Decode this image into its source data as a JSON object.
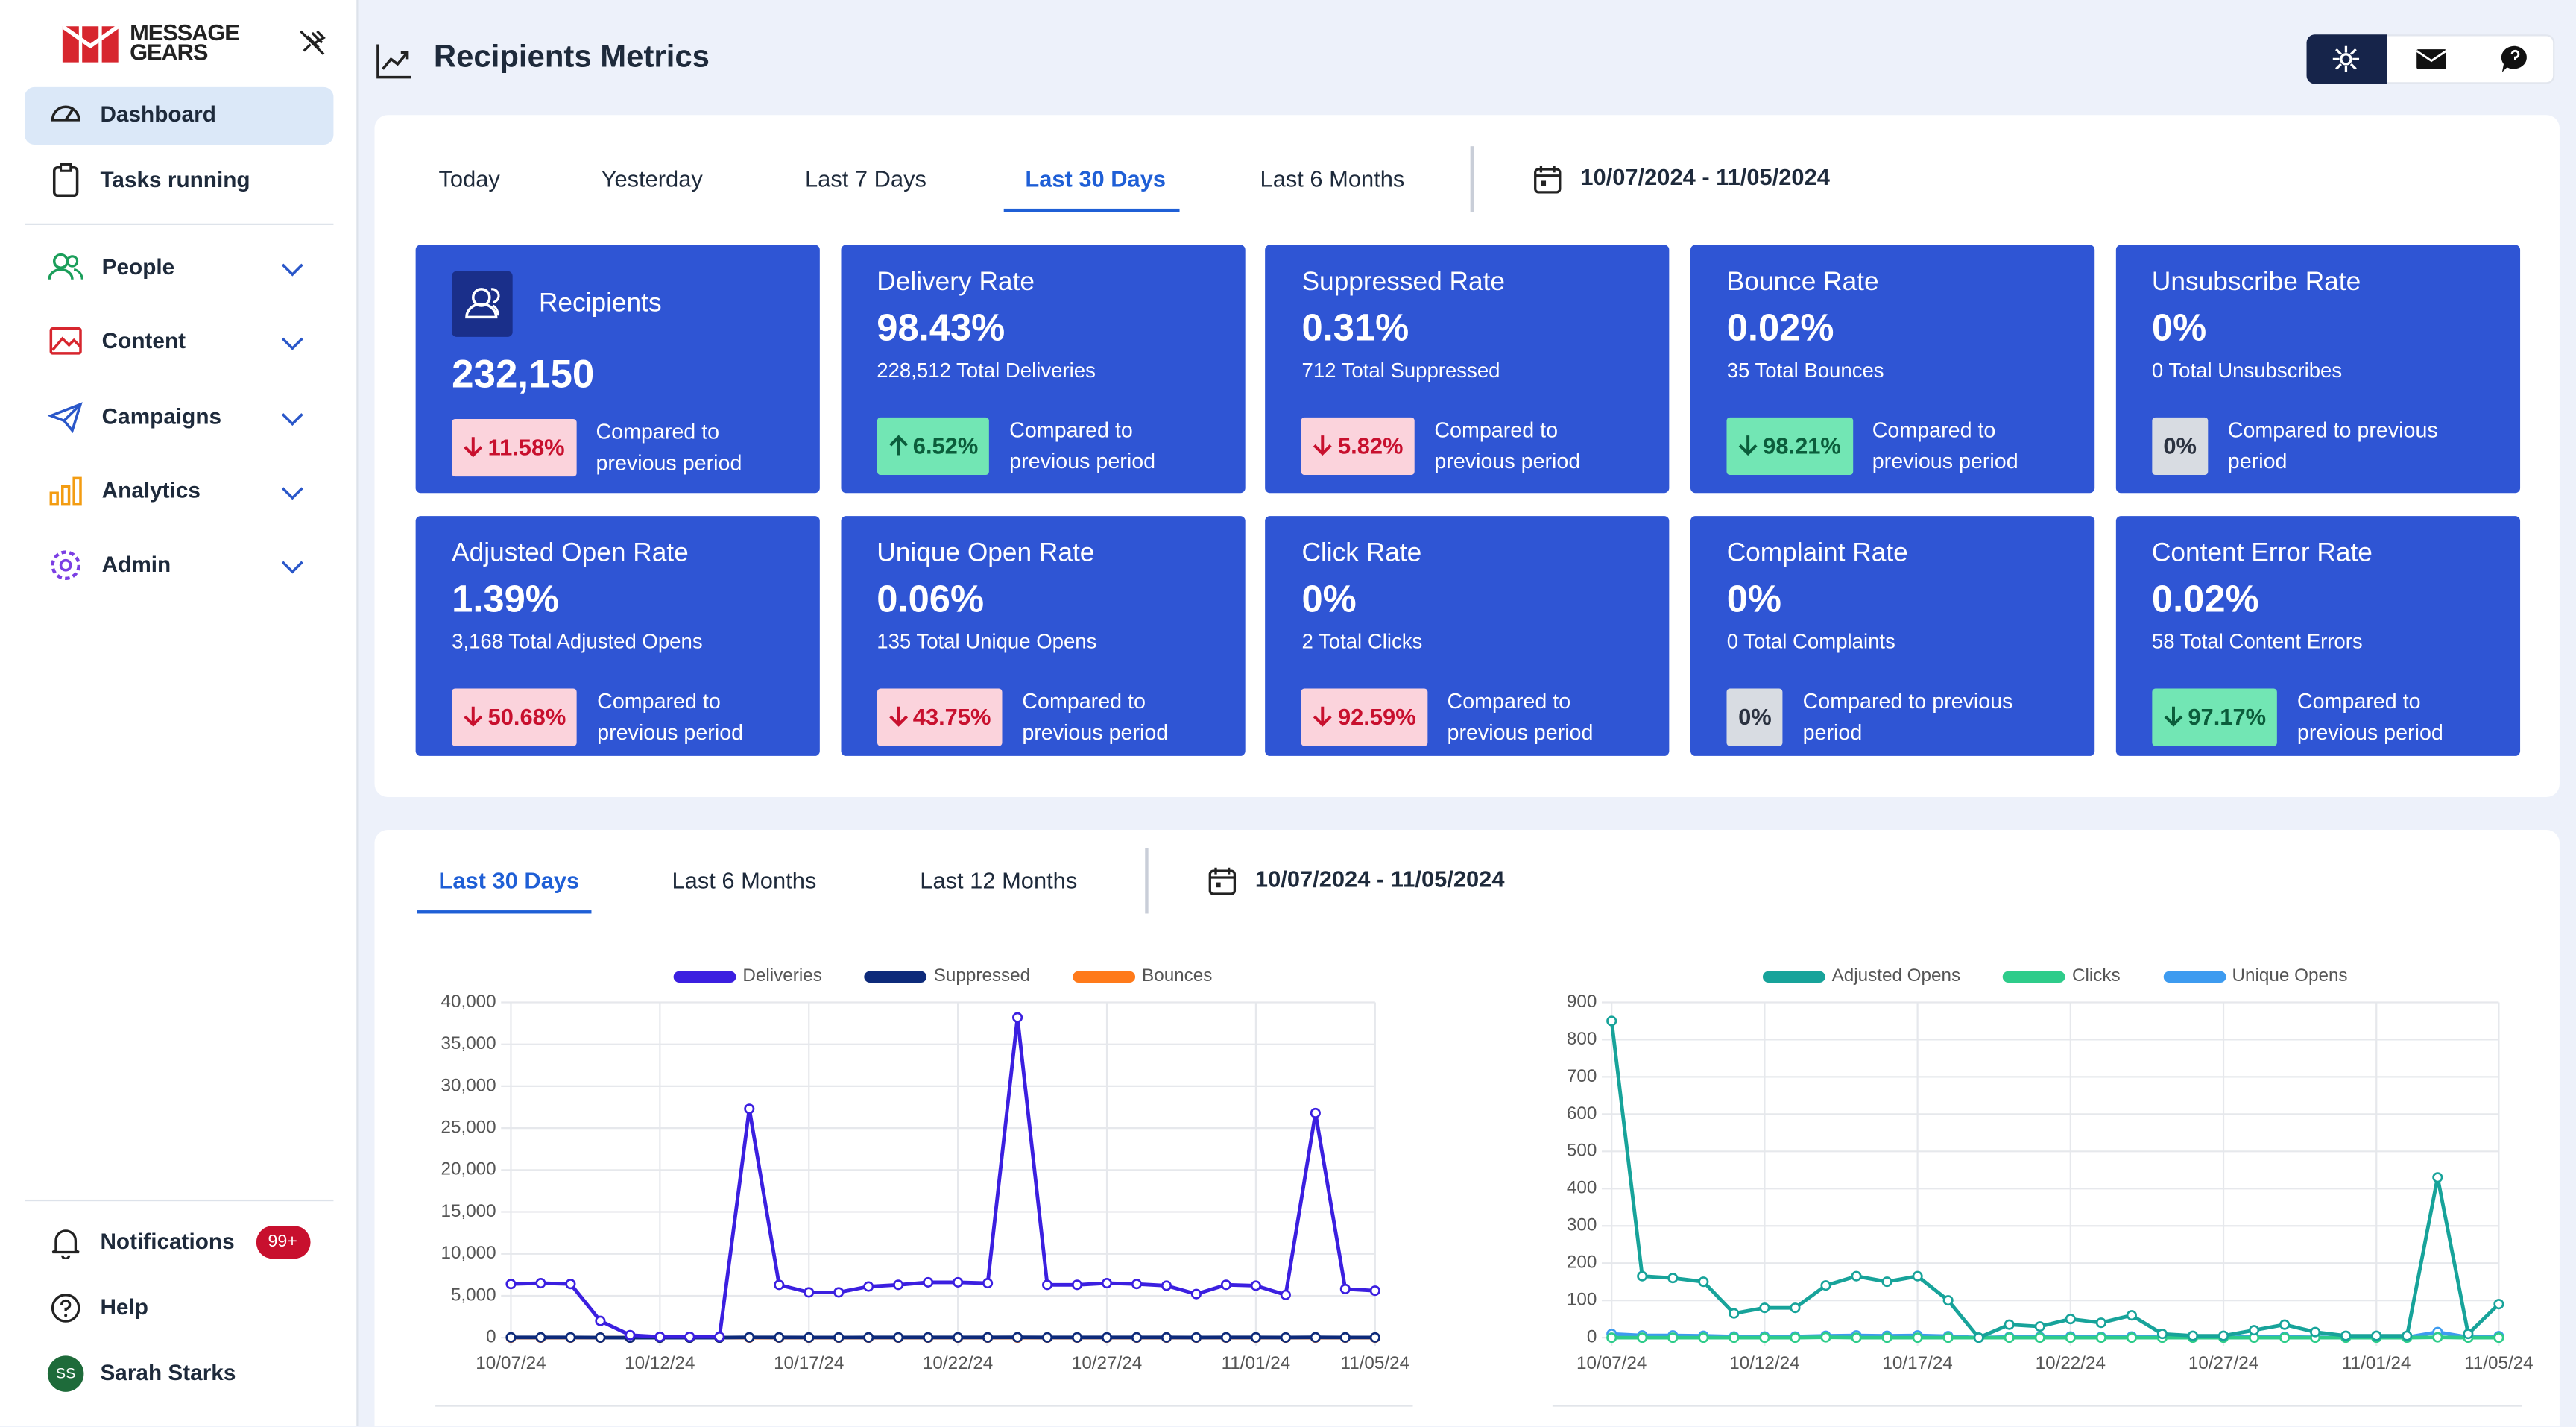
{
  "sidebar": {
    "logo": [
      "MESSAGE",
      "GEARS"
    ],
    "nav": [
      {
        "label": "Dashboard",
        "active": true
      },
      {
        "label": "Tasks running"
      },
      {
        "label": "People",
        "expandable": true
      },
      {
        "label": "Content",
        "expandable": true
      },
      {
        "label": "Campaigns",
        "expandable": true
      },
      {
        "label": "Analytics",
        "expandable": true
      },
      {
        "label": "Admin",
        "expandable": true
      }
    ],
    "footer": [
      {
        "label": "Notifications",
        "badge": "99+"
      },
      {
        "label": "Help"
      },
      {
        "label": "Sarah Starks",
        "avatar": "SS"
      }
    ]
  },
  "header": {
    "title": "Recipients Metrics"
  },
  "metrics": {
    "tabs": [
      "Today",
      "Yesterday",
      "Last 7 Days",
      "Last 30 Days",
      "Last 6 Months"
    ],
    "active_tab": "Last 30 Days",
    "date_range": "10/07/2024 - 11/05/2024",
    "cards": [
      {
        "title": "Recipients",
        "value": "232,150",
        "change": "11.58%",
        "arrow": "down",
        "tone": "bad",
        "comparison": "Compared to previous period"
      },
      {
        "title": "Delivery Rate",
        "value": "98.43%",
        "subtitle": "228,512 Total Deliveries",
        "change": "6.52%",
        "arrow": "up",
        "tone": "good",
        "comparison": "Compared to previous period"
      },
      {
        "title": "Suppressed Rate",
        "value": "0.31%",
        "subtitle": "712 Total Suppressed",
        "change": "5.82%",
        "arrow": "down",
        "tone": "bad",
        "comparison": "Compared to previous period"
      },
      {
        "title": "Bounce Rate",
        "value": "0.02%",
        "subtitle": "35 Total Bounces",
        "change": "98.21%",
        "arrow": "down",
        "tone": "good",
        "comparison": "Compared to previous period"
      },
      {
        "title": "Unsubscribe Rate",
        "value": "0%",
        "subtitle": "0 Total Unsubscribes",
        "change": "0%",
        "tone": "neutral",
        "comparison": "Compared to previous period"
      },
      {
        "title": "Adjusted Open Rate",
        "value": "1.39%",
        "subtitle": "3,168 Total Adjusted Opens",
        "change": "50.68%",
        "arrow": "down",
        "tone": "bad",
        "comparison": "Compared to previous period"
      },
      {
        "title": "Unique Open Rate",
        "value": "0.06%",
        "subtitle": "135 Total Unique Opens",
        "change": "43.75%",
        "arrow": "down",
        "tone": "bad",
        "comparison": "Compared to previous period"
      },
      {
        "title": "Click Rate",
        "value": "0%",
        "subtitle": "2 Total Clicks",
        "change": "92.59%",
        "arrow": "down",
        "tone": "bad",
        "comparison": "Compared to previous period"
      },
      {
        "title": "Complaint Rate",
        "value": "0%",
        "subtitle": "0 Total Complaints",
        "change": "0%",
        "tone": "neutral",
        "comparison": "Compared to previous period"
      },
      {
        "title": "Content Error Rate",
        "value": "0.02%",
        "subtitle": "58 Total Content Errors",
        "change": "97.17%",
        "arrow": "down",
        "tone": "good",
        "comparison": "Compared to previous period"
      }
    ]
  },
  "trends": {
    "tabs": [
      "Last 30 Days",
      "Last 6 Months",
      "Last 12 Months"
    ],
    "active_tab": "Last 30 Days",
    "date_range": "10/07/2024 - 11/05/2024"
  },
  "charts": [
    {
      "type": "line",
      "categories": [
        "10/07/24",
        null,
        null,
        null,
        null,
        "10/12/24",
        null,
        null,
        null,
        null,
        "10/17/24",
        null,
        null,
        null,
        null,
        "10/22/24",
        null,
        null,
        null,
        null,
        "10/27/24",
        null,
        null,
        null,
        null,
        "11/01/24",
        null,
        null,
        null,
        "11/05/24"
      ],
      "ylim": [
        0,
        40000
      ],
      "yticks": [
        0,
        {
          "value": 5000,
          "label": "5,000"
        },
        {
          "value": 10000,
          "label": "10,000"
        },
        {
          "value": 15000,
          "label": "15,000"
        },
        {
          "value": 20000,
          "label": "20,000"
        },
        {
          "value": 25000,
          "label": "25,000"
        },
        {
          "value": 30000,
          "label": "30,000"
        },
        {
          "value": 35000,
          "label": "35,000"
        },
        {
          "value": 40000,
          "label": "40,000"
        }
      ],
      "grid": true,
      "series": [
        {
          "name": "Deliveries",
          "color": "#3b1fe0",
          "values": [
            6400,
            6500,
            6400,
            2000,
            300,
            100,
            100,
            100,
            27300,
            6300,
            5400,
            5400,
            6100,
            6300,
            6600,
            6600,
            6500,
            38200,
            6300,
            6300,
            6500,
            6400,
            6200,
            5200,
            6300,
            6200,
            5100,
            26800,
            5800,
            5600
          ]
        },
        {
          "name": "Suppressed",
          "color": "#0d2a7a",
          "values": [
            30,
            28,
            26,
            10,
            2,
            1,
            1,
            1,
            35,
            25,
            22,
            22,
            24,
            25,
            26,
            26,
            25,
            40,
            25,
            25,
            26,
            25,
            24,
            20,
            25,
            24,
            20,
            35,
            23,
            22
          ]
        },
        {
          "name": "Bounces",
          "color": "#ff7a1a",
          "values": [
            2,
            2,
            1,
            1,
            0,
            0,
            0,
            0,
            3,
            1,
            1,
            1,
            1,
            1,
            1,
            1,
            1,
            4,
            1,
            1,
            1,
            1,
            1,
            1,
            1,
            1,
            1,
            3,
            1,
            1
          ]
        }
      ]
    },
    {
      "type": "line",
      "categories": [
        "10/07/24",
        null,
        null,
        null,
        null,
        "10/12/24",
        null,
        null,
        null,
        null,
        "10/17/24",
        null,
        null,
        null,
        null,
        "10/22/24",
        null,
        null,
        null,
        null,
        "10/27/24",
        null,
        null,
        null,
        null,
        "11/01/24",
        null,
        null,
        null,
        "11/05/24"
      ],
      "ylim": [
        0,
        900
      ],
      "yticks": [
        0,
        100,
        200,
        300,
        400,
        500,
        600,
        700,
        800,
        900
      ],
      "grid": true,
      "series": [
        {
          "name": "Adjusted Opens",
          "color": "#17a39a",
          "values": [
            850,
            165,
            160,
            150,
            65,
            80,
            80,
            140,
            165,
            150,
            165,
            100,
            0,
            35,
            30,
            50,
            40,
            60,
            10,
            5,
            5,
            20,
            35,
            15,
            5,
            5,
            5,
            430,
            10,
            90
          ]
        },
        {
          "name": "Clicks",
          "color": "#2ecc8a",
          "values": [
            0,
            0,
            0,
            0,
            0,
            0,
            0,
            1,
            0,
            0,
            0,
            0,
            0,
            0,
            0,
            0,
            0,
            0,
            0,
            0,
            0,
            0,
            0,
            0,
            0,
            0,
            0,
            1,
            0,
            0
          ]
        },
        {
          "name": "Unique Opens",
          "color": "#3d9bf0",
          "values": [
            10,
            6,
            6,
            5,
            3,
            3,
            3,
            5,
            6,
            5,
            6,
            4,
            0,
            2,
            2,
            3,
            2,
            3,
            1,
            1,
            1,
            2,
            2,
            1,
            1,
            1,
            1,
            15,
            1,
            4
          ]
        }
      ]
    }
  ]
}
